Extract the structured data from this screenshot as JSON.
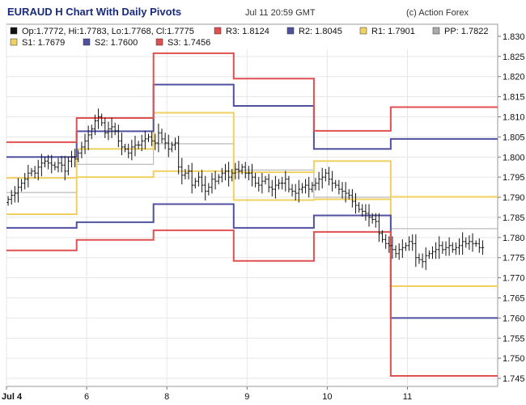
{
  "header": {
    "title": "EURAUD H Chart With Daily Pivots",
    "timestamp": "Jul 11 20:59 GMT",
    "credit": "(c) Action Forex"
  },
  "legend": [
    {
      "label": "Op:1.7772, Hi:1.7783, Lo:1.7768, Cl:1.7775",
      "color": "#111111"
    },
    {
      "label": "R3: 1.8124",
      "color": "#e05050"
    },
    {
      "label": "R2: 1.8045",
      "color": "#5050a0"
    },
    {
      "label": "R1: 1.7901",
      "color": "#f0d060"
    },
    {
      "label": "PP: 1.7822",
      "color": "#aaaaaa"
    },
    {
      "label": "S1: 1.7679",
      "color": "#f0d060"
    },
    {
      "label": "S2: 1.7600",
      "color": "#5050a0"
    },
    {
      "label": "S3: 1.7456",
      "color": "#e05050"
    }
  ],
  "chart_data": {
    "type": "line",
    "ylim": [
      1.743,
      1.833
    ],
    "xlim": [
      0,
      147
    ],
    "yticks": [
      "1.745",
      "1.750",
      "1.755",
      "1.760",
      "1.765",
      "1.770",
      "1.775",
      "1.780",
      "1.785",
      "1.790",
      "1.795",
      "1.800",
      "1.805",
      "1.810",
      "1.815",
      "1.820",
      "1.825",
      "1.830"
    ],
    "xticks": [
      {
        "label": "Jul 4",
        "x": 0,
        "bold": true
      },
      {
        "label": "6",
        "x": 24,
        "bold": false
      },
      {
        "label": "8",
        "x": 48,
        "bold": false
      },
      {
        "label": "9",
        "x": 72,
        "bold": false
      },
      {
        "label": "10",
        "x": 96,
        "bold": false
      },
      {
        "label": "11",
        "x": 120,
        "bold": false
      }
    ],
    "grid": true,
    "pivot_periods": [
      {
        "start": 0,
        "end": 21,
        "R3": 1.8037,
        "R2": 1.8,
        "R1": 1.7948,
        "PP": 1.7912,
        "S1": 1.7858,
        "S2": 1.7824,
        "S3": 1.7768
      },
      {
        "start": 21,
        "end": 44,
        "R3": 1.8097,
        "R2": 1.8064,
        "R1": 1.802,
        "PP": 1.7982,
        "S1": 1.795,
        "S2": 1.7838,
        "S3": 1.7794
      },
      {
        "start": 44,
        "end": 68,
        "R3": 1.8258,
        "R2": 1.818,
        "R1": 1.811,
        "PP": 1.8033,
        "S1": 1.7965,
        "S2": 1.7883,
        "S3": 1.7818
      },
      {
        "start": 68,
        "end": 92,
        "R3": 1.8195,
        "R2": 1.8127,
        "R1": 1.7962,
        "PP": 1.7968,
        "S1": 1.7893,
        "S2": 1.7824,
        "S3": 1.7742
      },
      {
        "start": 92,
        "end": 115,
        "R3": 1.8065,
        "R2": 1.802,
        "R1": 1.799,
        "PP": 1.79,
        "S1": 1.7895,
        "S2": 1.7855,
        "S3": 1.7814
      },
      {
        "start": 115,
        "end": 147,
        "R3": 1.8124,
        "R2": 1.8045,
        "R1": 1.7901,
        "PP": 1.7822,
        "S1": 1.7679,
        "S2": 1.76,
        "S3": 1.7456
      }
    ],
    "close_series": [
      1.7895,
      1.7905,
      1.791,
      1.7925,
      1.7935,
      1.7945,
      1.796,
      1.7965,
      1.796,
      1.7975,
      1.7985,
      1.799,
      1.7985,
      1.798,
      1.7975,
      1.7985,
      1.798,
      1.7965,
      1.799,
      1.8,
      1.7995,
      1.801,
      1.8025,
      1.804,
      1.8055,
      1.807,
      1.809,
      1.81,
      1.8085,
      1.806,
      1.807,
      1.8075,
      1.8065,
      1.804,
      1.8025,
      1.802,
      1.801,
      1.8025,
      1.803,
      1.803,
      1.804,
      1.8045,
      1.805,
      1.804,
      1.8035,
      1.806,
      1.8045,
      1.8035,
      1.802,
      1.803,
      1.8035,
      1.7975,
      1.7955,
      1.796,
      1.7965,
      1.793,
      1.794,
      1.795,
      1.793,
      1.7915,
      1.7925,
      1.7945,
      1.794,
      1.795,
      1.796,
      1.7965,
      1.795,
      1.796,
      1.797,
      1.7965,
      1.7975,
      1.796,
      1.796,
      1.795,
      1.7935,
      1.793,
      1.794,
      1.7945,
      1.7925,
      1.792,
      1.793,
      1.7935,
      1.7935,
      1.7945,
      1.792,
      1.7915,
      1.791,
      1.792,
      1.7925,
      1.793,
      1.792,
      1.793,
      1.7935,
      1.7945,
      1.795,
      1.796,
      1.7945,
      1.7935,
      1.793,
      1.792,
      1.7915,
      1.791,
      1.7905,
      1.789,
      1.788,
      1.787,
      1.7865,
      1.786,
      1.785,
      1.7845,
      1.784,
      1.781,
      1.7795,
      1.7785,
      1.778,
      1.777,
      1.776,
      1.777,
      1.7775,
      1.778,
      1.779,
      1.7785,
      1.775,
      1.7745,
      1.774,
      1.7755,
      1.776,
      1.7765,
      1.777,
      1.778,
      1.777,
      1.7775,
      1.778,
      1.777,
      1.7775,
      1.778,
      1.779,
      1.7785,
      1.779,
      1.7785,
      1.7785,
      1.7775,
      1.7775
    ],
    "level_colors": {
      "R3": "#e05050",
      "R2": "#5050a0",
      "R1": "#f0d060",
      "PP": "#aaaaaa",
      "S1": "#f0d060",
      "S2": "#5050a0",
      "S3": "#e05050"
    }
  }
}
